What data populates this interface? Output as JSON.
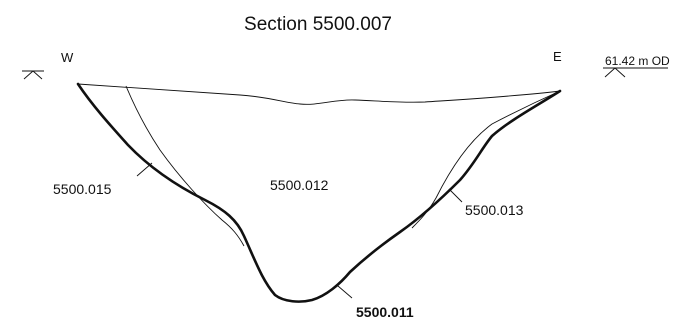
{
  "title": "Section 5500.007",
  "orientation": {
    "west": "W",
    "east": "E"
  },
  "water_level": {
    "label": "61.42 m OD"
  },
  "zones": {
    "central": "5500.012",
    "west_bank": "5500.015",
    "east_bank": "5500.013",
    "bed": "5500.011"
  }
}
